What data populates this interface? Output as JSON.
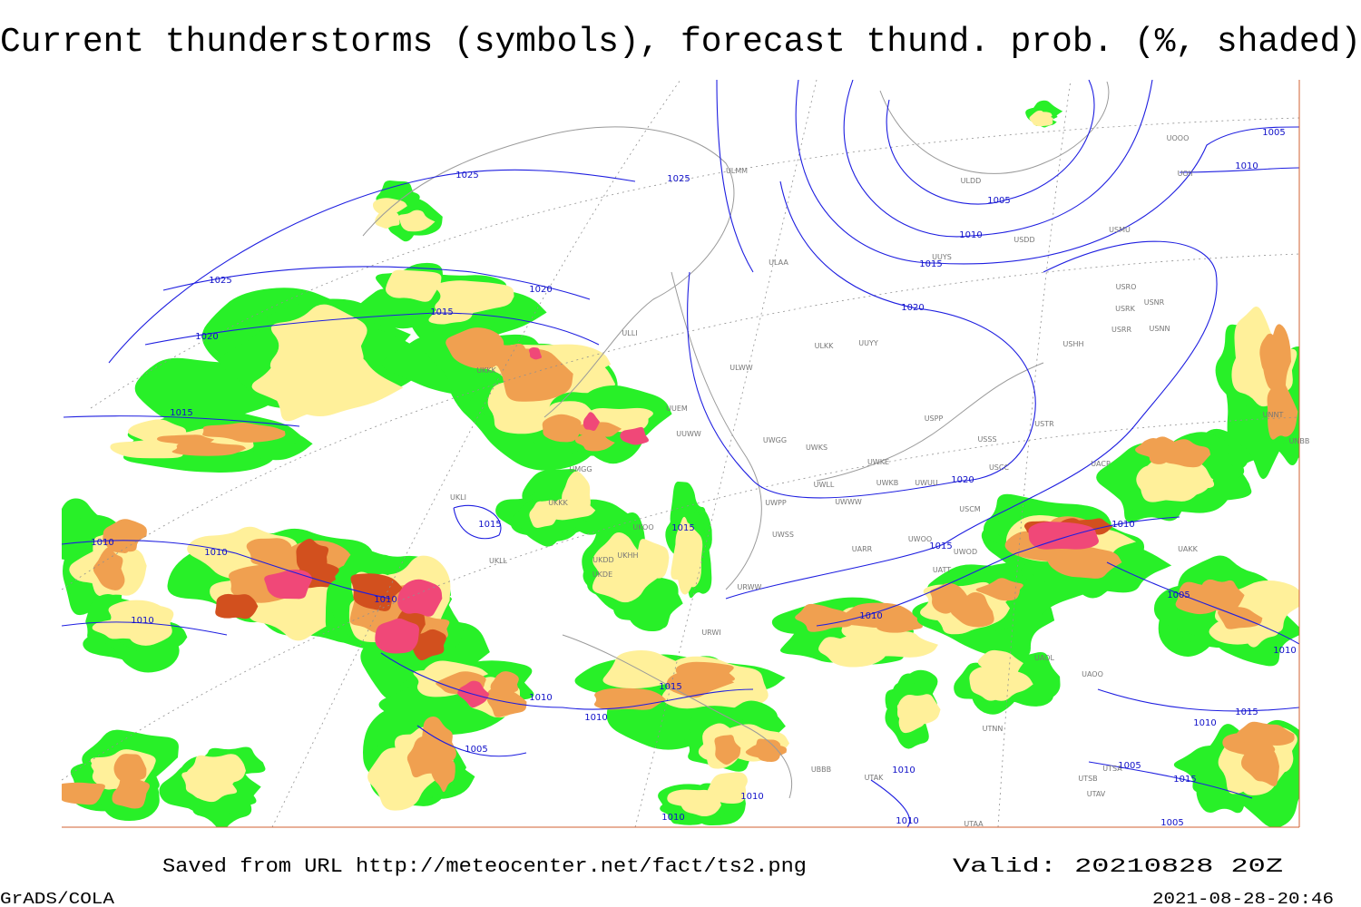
{
  "title": "Current thunderstorms (symbols), forecast thund. prob. (%, shaded)",
  "footer": {
    "saved_from": "Saved from URL http://meteocenter.net/fact/ts2.png",
    "valid": "Valid: 20210828 20Z",
    "software": "GrADS/COLA",
    "timestamp": "2021-08-28-20:46"
  },
  "isobar_labels": [
    "1025",
    "1025",
    "1025",
    "1020",
    "1015",
    "1020",
    "1015",
    "1005",
    "1010",
    "1015",
    "1020",
    "1020",
    "1015",
    "1015",
    "1010",
    "1010",
    "1010",
    "1010",
    "1015",
    "1010",
    "1010",
    "1005",
    "1010",
    "1015",
    "1010",
    "1005",
    "1010",
    "1010",
    "1015",
    "1005",
    "1015",
    "1010",
    "1010",
    "1010",
    "1005",
    "1010",
    "1005",
    "1010"
  ],
  "station_labels": [
    "ULMM",
    "ULDD",
    "UOII",
    "UOOO",
    "ULAA",
    "USDD",
    "USMU",
    "UUYS",
    "USRO",
    "USRK",
    "USNR",
    "USRR",
    "USNN",
    "ULKK",
    "UUYY",
    "USHH",
    "ULWW",
    "UUEM",
    "UUWW",
    "UWGG",
    "UWKS",
    "USPP",
    "USTR",
    "USSS",
    "USCC",
    "UWKE",
    "UWKB",
    "UWUU",
    "UWLL",
    "UWPP",
    "UWWW",
    "USCM",
    "UWSS",
    "UWOO",
    "UWOD",
    "UARR",
    "URWW",
    "UKLI",
    "UKKK",
    "UKOO",
    "UKDD",
    "UKHH",
    "UKDE",
    "ULLI",
    "UACP",
    "UAKK",
    "UNNT",
    "UNBB",
    "UAOL",
    "UAOO",
    "UATT",
    "UTNN",
    "UBBB",
    "UTAK",
    "UTSB",
    "UTAV",
    "UTSA",
    "UTAA",
    "URWI",
    "UMGG",
    "UKKK",
    "UKLL"
  ]
}
